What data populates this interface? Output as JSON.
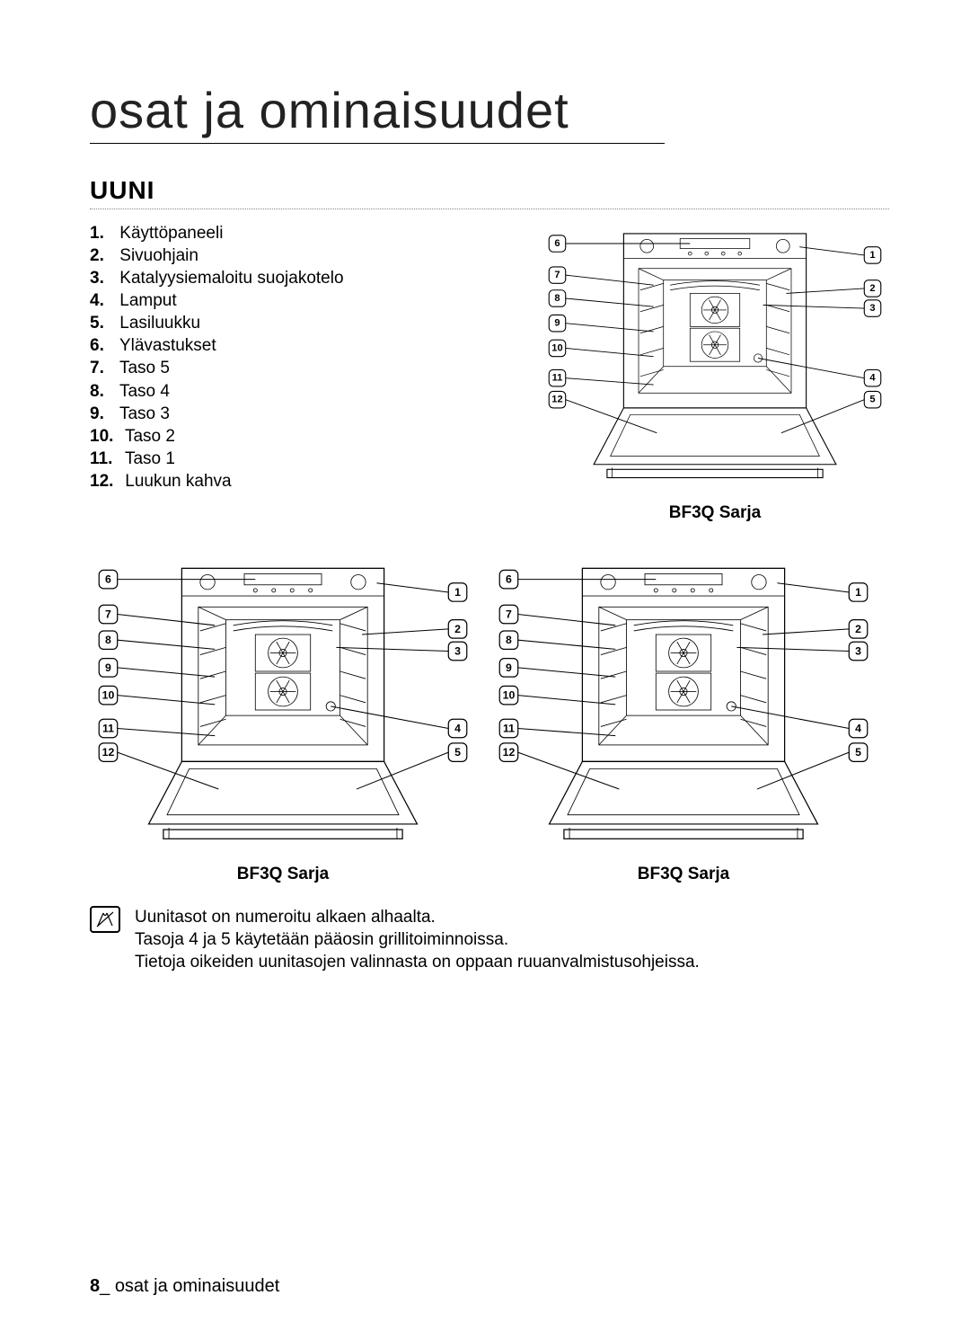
{
  "title": "osat ja ominaisuudet",
  "section": "UUNI",
  "parts": [
    {
      "n": "1.",
      "label": "Käyttöpaneeli"
    },
    {
      "n": "2.",
      "label": "Sivuohjain"
    },
    {
      "n": "3.",
      "label": "Katalyysiemaloitu suojakotelo"
    },
    {
      "n": "4.",
      "label": "Lamput"
    },
    {
      "n": "5.",
      "label": "Lasiluukku"
    },
    {
      "n": "6.",
      "label": "Ylävastukset"
    },
    {
      "n": "7.",
      "label": "Taso 5"
    },
    {
      "n": "8.",
      "label": "Taso 4"
    },
    {
      "n": "9.",
      "label": "Taso 3"
    },
    {
      "n": "10.",
      "label": "Taso 2"
    },
    {
      "n": "11.",
      "label": "Taso 1"
    },
    {
      "n": "12.",
      "label": "Luukun kahva"
    }
  ],
  "captions": {
    "top": "BF3Q Sarja",
    "bl": "BF3Q Sarja",
    "br": "BF3Q Sarja"
  },
  "note": {
    "l1": "Uunitasot on numeroitu alkaen alhaalta.",
    "l2": "Tasoja 4 ja 5 käytetään pääosin grillitoiminnoissa.",
    "l3": "Tietoja oikeiden uunitasojen valinnasta on oppaan ruuanvalmistusohjeissa."
  },
  "footer": {
    "page": "8",
    "sep": "_ ",
    "label": "osat ja ominaisuudet"
  },
  "callouts_left": [
    "6",
    "7",
    "8",
    "9",
    "10",
    "11",
    "12"
  ],
  "callouts_right": [
    "1",
    "2",
    "3",
    "4",
    "5"
  ],
  "diagram_colors": {
    "stroke": "#000000",
    "bg": "#ffffff"
  }
}
